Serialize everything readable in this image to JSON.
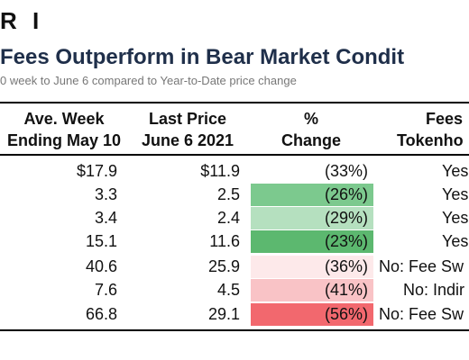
{
  "brand": "R I",
  "title": "Fees Outperform in Bear Market Condit",
  "subtitle": "0 week to June 6 compared to Year-to-Date price change",
  "headers": {
    "col1": [
      "Ave. Week",
      "Ending May 10"
    ],
    "col2": [
      "Last Price",
      "June 6 2021"
    ],
    "col3": [
      "%",
      "Change"
    ],
    "col4": [
      "Fees",
      "Tokenho"
    ]
  },
  "rows": [
    {
      "avg": "$17.9",
      "last": "$11.9",
      "change": "(33%)",
      "fees": "Yes",
      "color": "#ffffff"
    },
    {
      "avg": "3.3",
      "last": "2.5",
      "change": "(26%)",
      "fees": "Yes",
      "color": "#7cc98e"
    },
    {
      "avg": "3.4",
      "last": "2.4",
      "change": "(29%)",
      "fees": "Yes",
      "color": "#b5e0bf"
    },
    {
      "avg": "15.1",
      "last": "11.6",
      "change": "(23%)",
      "fees": "Yes",
      "color": "#5cb86f"
    },
    {
      "avg": "40.6",
      "last": "25.9",
      "change": "(36%)",
      "fees": "No: Fee Sw",
      "color": "#fde9ea"
    },
    {
      "avg": "7.6",
      "last": "4.5",
      "change": "(41%)",
      "fees": "No: Indir",
      "color": "#f9c3c6"
    },
    {
      "avg": "66.8",
      "last": "29.1",
      "change": "(56%)",
      "fees": "No: Fee Sw",
      "color": "#f2686e"
    }
  ]
}
